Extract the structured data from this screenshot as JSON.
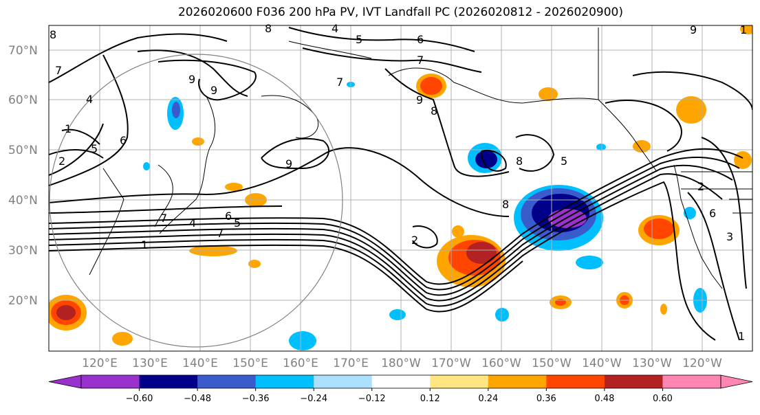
{
  "title": "2026020600 F036 200 hPa PV, IVT Landfall PC (2026020812 - 2026020900)",
  "lat_labels": [
    "70°N",
    "60°N",
    "50°N",
    "40°N",
    "30°N",
    "20°N"
  ],
  "lon_labels": [
    "120°E",
    "130°E",
    "140°E",
    "150°E",
    "160°E",
    "170°E",
    "180°W",
    "170°W",
    "160°W",
    "150°W",
    "140°W",
    "130°W",
    "120°W"
  ],
  "colorbar": {
    "colors": [
      "#9932CC",
      "#00008B",
      "#3A5BCC",
      "#00BFFF",
      "#ADDFFF",
      "#FFFFFF",
      "#FFE680",
      "#FFA500",
      "#FF4500",
      "#B22222",
      "#FF85B3"
    ],
    "tick_labels": [
      "−0.60",
      "−0.48",
      "−0.36",
      "−0.24",
      "−0.12",
      "0.12",
      "0.24",
      "0.36",
      "0.48",
      "0.60"
    ]
  },
  "contour_labels": [
    "8",
    "4",
    "5",
    "6",
    "7",
    "9",
    "9",
    "4",
    "1",
    "6",
    "2",
    "5",
    "9",
    "7",
    "8",
    "7",
    "6",
    "7",
    "1",
    "8",
    "2",
    "9",
    "8",
    "5",
    "2",
    "1",
    "6",
    "3",
    "9",
    "1",
    "5",
    "4",
    "8",
    "7"
  ]
}
